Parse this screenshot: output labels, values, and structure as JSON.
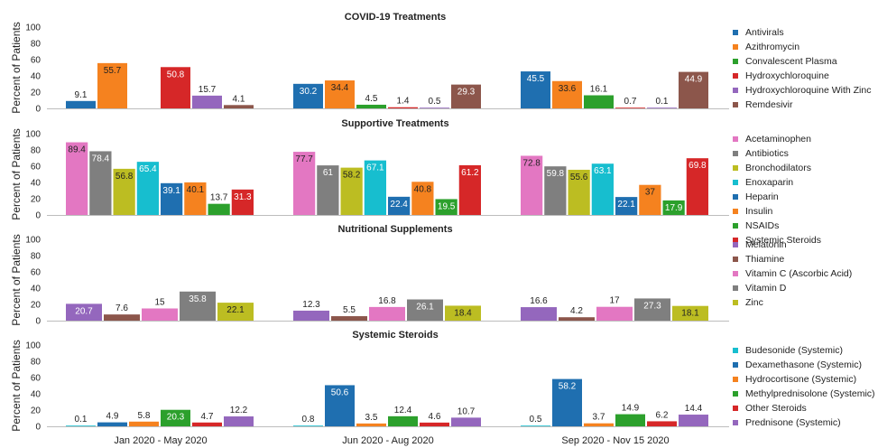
{
  "chart_data": {
    "type": "bar",
    "categories": [
      "Jan 2020 - May 2020",
      "Jun 2020 - Aug 2020",
      "Sep 2020 - Nov 15 2020"
    ],
    "ylabel": "Percent of Patients",
    "ylim": [
      0,
      100
    ],
    "yticks": [
      0,
      20,
      40,
      60,
      80,
      100
    ],
    "legend_position": "right",
    "panels": [
      {
        "title": "COVID-19 Treatments",
        "series": [
          {
            "name": "Antivirals",
            "color": "#1f6fb0",
            "values": [
              9.1,
              30.2,
              45.5
            ]
          },
          {
            "name": "Azithromycin",
            "color": "#f5821f",
            "values": [
              55.7,
              34.4,
              33.6
            ]
          },
          {
            "name": "Convalescent Plasma",
            "color": "#2ca02c",
            "values": [
              null,
              4.5,
              16.1
            ]
          },
          {
            "name": "Hydroxychloroquine",
            "color": "#d62728",
            "values": [
              50.8,
              1.4,
              0.7
            ]
          },
          {
            "name": "Hydroxychloroquine With Zinc",
            "color": "#9467bd",
            "values": [
              15.7,
              0.5,
              0.1
            ]
          },
          {
            "name": "Remdesivir",
            "color": "#8c564b",
            "values": [
              4.1,
              29.3,
              44.9
            ]
          }
        ]
      },
      {
        "title": "Supportive Treatments",
        "series": [
          {
            "name": "Acetaminophen",
            "color": "#e377c2",
            "values": [
              89.4,
              77.7,
              72.8
            ]
          },
          {
            "name": "Antibiotics",
            "color": "#7f7f7f",
            "values": [
              78.4,
              61,
              59.8
            ]
          },
          {
            "name": "Bronchodilators",
            "color": "#bcbd22",
            "values": [
              56.8,
              58.2,
              55.6
            ]
          },
          {
            "name": "Enoxaparin",
            "color": "#17becf",
            "values": [
              65.4,
              67.1,
              63.1
            ]
          },
          {
            "name": "Heparin",
            "color": "#1f6fb0",
            "values": [
              39.1,
              22.4,
              22.1
            ]
          },
          {
            "name": "Insulin",
            "color": "#f5821f",
            "values": [
              40.1,
              40.8,
              37
            ]
          },
          {
            "name": "NSAIDs",
            "color": "#2ca02c",
            "values": [
              13.7,
              19.5,
              17.9
            ]
          },
          {
            "name": "Systemic Steroids",
            "color": "#d62728",
            "values": [
              31.3,
              61.2,
              69.8
            ]
          }
        ]
      },
      {
        "title": "Nutritional Supplements",
        "series": [
          {
            "name": "Melatonin",
            "color": "#9467bd",
            "values": [
              20.7,
              12.3,
              16.6
            ]
          },
          {
            "name": "Thiamine",
            "color": "#8c564b",
            "values": [
              7.6,
              5.5,
              4.2
            ]
          },
          {
            "name": "Vitamin C (Ascorbic Acid)",
            "color": "#e377c2",
            "values": [
              15,
              16.8,
              17
            ]
          },
          {
            "name": "Vitamin D",
            "color": "#7f7f7f",
            "values": [
              35.8,
              26.1,
              27.3
            ]
          },
          {
            "name": "Zinc",
            "color": "#bcbd22",
            "values": [
              22.1,
              18.4,
              18.1
            ]
          }
        ]
      },
      {
        "title": "Systemic Steroids",
        "series": [
          {
            "name": "Budesonide (Systemic)",
            "color": "#17becf",
            "values": [
              0.1,
              0.8,
              0.5
            ]
          },
          {
            "name": "Dexamethasone (Systemic)",
            "color": "#1f6fb0",
            "values": [
              4.9,
              50.6,
              58.2
            ]
          },
          {
            "name": "Hydrocortisone (Systemic)",
            "color": "#f5821f",
            "values": [
              5.8,
              3.5,
              3.7
            ]
          },
          {
            "name": "Methylprednisolone (Systemic)",
            "color": "#2ca02c",
            "values": [
              20.3,
              12.4,
              14.9
            ]
          },
          {
            "name": "Other Steroids",
            "color": "#d62728",
            "values": [
              4.7,
              4.6,
              6.2
            ]
          },
          {
            "name": "Prednisone (Systemic)",
            "color": "#9467bd",
            "values": [
              12.2,
              10.7,
              14.4
            ]
          }
        ]
      }
    ]
  }
}
